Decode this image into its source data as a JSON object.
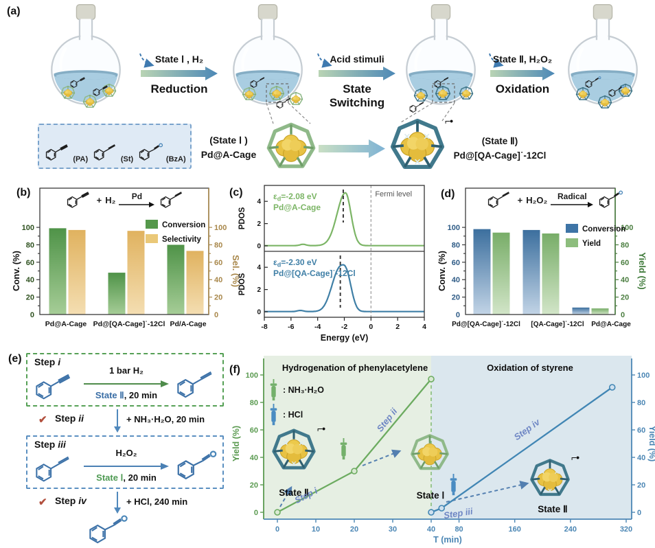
{
  "colors": {
    "hydrogenation_line": "#6cab60",
    "oxidation_line": "#4186b4",
    "conversion_green": "#55984b",
    "selectivity_yellow": "#eac878",
    "conversion_blue": "#3e74a6",
    "yield_green": "#8dbd7d",
    "pdos_green": "#7cb566",
    "pdos_blue": "#3f7fa6",
    "region_green_bg": "#e6efe3",
    "region_blue_bg": "#dbe7ee",
    "check_red": "#b2503e",
    "step_label_blue": "#6e86c4"
  },
  "figure": {
    "a": {
      "label": "(a)",
      "arrow1_top": "State Ⅰ , H₂",
      "arrow1_bottom": "Reduction",
      "arrow2_top": "Acid stimuli",
      "arrow2_bottom1": "State",
      "arrow2_bottom2": "Switching",
      "arrow3_top": "State Ⅱ, H₂O₂",
      "arrow3_bottom": "Oxidation",
      "mol_pa": "(PA)",
      "mol_st": "(St)",
      "mol_bza": "(BzA)",
      "state1_line1": "(State Ⅰ )",
      "state1_line2": "Pd@A-Cage",
      "state2_line1": "(State Ⅱ)",
      "state2_line2": "Pd@[QA-Cage]˙-12Cl",
      "radical_mark": "⌐•"
    },
    "b": {
      "label": "(b)"
    },
    "c": {
      "label": "(c)"
    },
    "d": {
      "label": "(d)"
    },
    "e": {
      "label": "(e)",
      "step1_word": "Step",
      "step1_num": "i",
      "step1_above": "1 bar H₂",
      "step1_state": "State Ⅱ",
      "step1_time": ", 20 min",
      "step2_word": "Step",
      "step2_num": "ii",
      "step2_text": "+ NH₃·H₂O, 20 min",
      "step3_word": "Step",
      "step3_num": "iii",
      "step3_above": "H₂O₂",
      "step3_state": "State Ⅰ",
      "step3_time": ", 20 min",
      "step4_word": "Step",
      "step4_num": "iv",
      "step4_text": "+ HCl, 240 min",
      "check_icon": "✔"
    },
    "f": {
      "label": "(f)"
    }
  },
  "chart_data": [
    {
      "id": "b",
      "type": "bar",
      "categories": [
        "Pd@A-Cage",
        "Pd@[QA-Cage]˙-12Cl",
        "Pd/A-Cage"
      ],
      "series": [
        {
          "name": "Conversion",
          "values": [
            99,
            48,
            80
          ]
        },
        {
          "name": "Selectivity",
          "values": [
            97,
            96,
            73
          ]
        }
      ],
      "ylabel_left": "Conv. (%)",
      "ylabel_right": "Sel. (%)",
      "yticks": [
        0,
        20,
        40,
        60,
        80,
        100
      ],
      "ylim": [
        0,
        145
      ],
      "reaction": {
        "plus": "+",
        "reagent": "H₂",
        "condition": "Pd"
      }
    },
    {
      "id": "c",
      "type": "line",
      "xlabel": "Energy (eV)",
      "xticks": [
        -8,
        -6,
        -4,
        -2,
        0,
        2,
        4
      ],
      "xlim": [
        -8,
        4
      ],
      "ylabel": "PDOS",
      "yticks": [
        0,
        2,
        4
      ],
      "fermi_label": "Fermi level",
      "fermi_x": 0,
      "curves": [
        {
          "ed_pre": "ε",
          "ed_sub": "d",
          "ed_post": "=-2.08 eV",
          "name": "Pd@A-Cage",
          "ed": -2.08,
          "amp": 4.75,
          "mu": -1.92,
          "sigma_left": 0.62,
          "sigma_right": 0.42,
          "pow": 2,
          "bump_mu": -5.1,
          "bump_amp": 0.12
        },
        {
          "ed_pre": "ε",
          "ed_sub": "d",
          "ed_post": "=-2.30 eV",
          "name": "Pd@[QA-Cage]˙-12Cl",
          "ed": -2.3,
          "amp": 4.2,
          "mu": -2.1,
          "sigma_left": 0.78,
          "sigma_right": 0.55,
          "pow": 2.4,
          "bump_mu": -5.3,
          "bump_amp": 0.1
        }
      ]
    },
    {
      "id": "d",
      "type": "bar",
      "categories": [
        "Pd@[QA-Cage]˙-12Cl",
        "[QA-Cage]˙-12Cl",
        "Pd@A-Cage"
      ],
      "series": [
        {
          "name": "Conversion",
          "values": [
            98,
            97,
            8
          ]
        },
        {
          "name": "Yield",
          "values": [
            94,
            93,
            7
          ]
        }
      ],
      "ylabel_left": "Conv. (%)",
      "ylabel_right": "Yield (%)",
      "yticks": [
        0,
        20,
        40,
        60,
        80,
        100
      ],
      "ylim": [
        0,
        145
      ],
      "reaction": {
        "plus": "+",
        "reagent": "H₂O₂",
        "condition": "Radical"
      }
    },
    {
      "id": "f",
      "type": "line",
      "title_left_region": "Hydrogenation of phenylacetylene",
      "title_right_region": "Oxidation of styrene",
      "xlabel": "T (min)",
      "xticks": [
        0,
        10,
        20,
        30,
        40,
        80,
        160,
        240,
        320
      ],
      "x_break": 40,
      "ylabel_left": "Yield (%)",
      "ylabel_right": "Yield (%)",
      "yticks": [
        0,
        20,
        40,
        60,
        80,
        100
      ],
      "series": [
        {
          "name": "Hydrogenation of phenylacetylene",
          "points": [
            [
              0,
              0
            ],
            [
              20,
              30
            ],
            [
              40,
              97
            ]
          ]
        },
        {
          "name": "Oxidation of styrene",
          "points": [
            [
              40,
              0
            ],
            [
              55,
              3
            ],
            [
              300,
              91
            ]
          ]
        }
      ],
      "step_labels": {
        "i": "Step i",
        "ii": "Step ii",
        "iii": "Step iii",
        "iv": "Step iv"
      },
      "legend": [
        {
          "icon": "syringe-green-icon",
          "label": ": NH₃·H₂O"
        },
        {
          "icon": "syringe-blue-icon",
          "label": ": HCl"
        }
      ],
      "states": [
        {
          "label": "State Ⅱ",
          "radical": "⌐•"
        },
        {
          "label": "State Ⅰ",
          "radical": ""
        },
        {
          "label": "State Ⅱ",
          "radical": "⌐•"
        }
      ]
    }
  ]
}
